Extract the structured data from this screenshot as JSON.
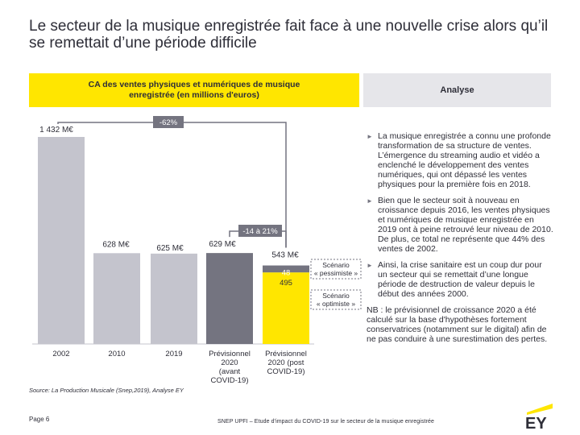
{
  "title": "Le secteur de la musique enregistrée fait face à une nouvelle crise alors qu’il se remettait d’une période difficile",
  "chart_header": "CA des ventes physiques et numériques de musique enregistrée (en millions d'euros)",
  "analysis_header": "Analyse",
  "chart_data": {
    "type": "bar",
    "title": "CA des ventes physiques et numériques de musique enregistrée (en millions d'euros)",
    "categories": [
      "2002",
      "2010",
      "2019",
      "Prévisionnel 2020 (avant COVID-19)",
      "Prévisionnel 2020 (post COVID-19)"
    ],
    "category_lines": [
      [
        "2002"
      ],
      [
        "2010"
      ],
      [
        "2019"
      ],
      [
        "Prévisionnel",
        "2020",
        "(avant",
        "COVID-19)"
      ],
      [
        "Prévisionnel",
        "2020 (post",
        "COVID-19)"
      ]
    ],
    "values": [
      1432,
      628,
      625,
      629,
      543
    ],
    "value_labels": [
      "1 432 M€",
      "628 M€",
      "625 M€",
      "629 M€",
      "543 M€"
    ],
    "stacked_post_covid": {
      "base": 495,
      "extra": 48,
      "base_label": "495",
      "extra_label": "48"
    },
    "scenarios": [
      "Scénario « pessimiste »",
      "Scénario « optimiste »"
    ],
    "annotations": [
      "-62%",
      "-14 à 21%"
    ],
    "ylim": [
      0,
      1432
    ],
    "colors": {
      "grey": "#c4c4cd",
      "yellow": "#ffe600",
      "dark": "#747480"
    }
  },
  "bullets": [
    "La musique enregistrée a connu une profonde transformation de sa structure de ventes. L’émergence du streaming audio et vidéo a enclenché le développement des ventes numériques, qui ont dépassé les ventes physiques pour la première fois en 2018.",
    "Bien que le secteur soit à nouveau en croissance depuis 2016, les ventes physiques et numériques de musique enregistrée en 2019 ont à peine retrouvé leur niveau de 2010. De plus, ce total ne représente que 44% des ventes de 2002.",
    "Ainsi, la crise sanitaire est un coup dur pour un secteur qui se remettait d’une longue période de destruction de valeur depuis le début des années 2000."
  ],
  "note": "NB : le prévisionnel de croissance 2020 a été calculé sur la base d'hypothèses fortement conservatrices (notamment sur le digital) afin de ne pas conduire à une surestimation des pertes.",
  "source": "Source: La Production Musicale (Snep,2019), Analyse EY",
  "footer": {
    "page": "Page 6",
    "doc": "SNEP UPFI – Etude d'impact du COVID-19 sur le secteur de la musique enregistrée",
    "logo": "EY"
  }
}
